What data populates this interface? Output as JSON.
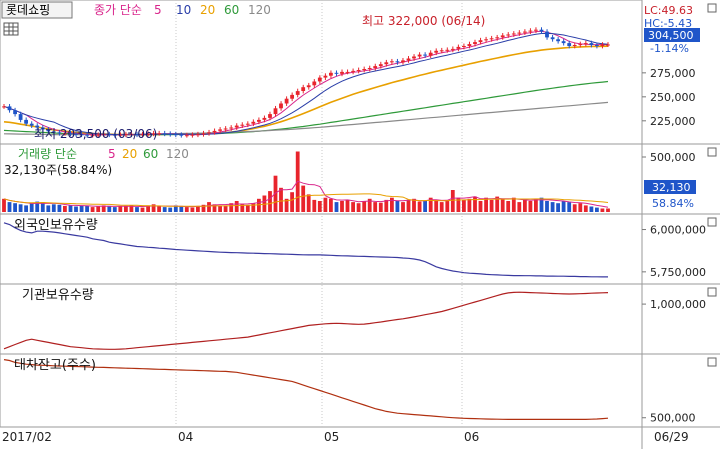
{
  "header": {
    "stock_name": "롯데쇼핑",
    "ma_label": "종가 단순",
    "periods": [
      "5",
      "10",
      "20",
      "60",
      "120"
    ],
    "lc": "LC:49.63",
    "hc": "HC:-5.43",
    "last_price": "304,500",
    "change_pct": "-1.14%",
    "high_note": "최고 322,000 (06/14)",
    "low_note": "최저 203,500 (03/06)"
  },
  "volume_header": {
    "title": "거래량 단순",
    "periods": [
      "5",
      "20",
      "60",
      "120"
    ],
    "current": "32,130주(58.84%)",
    "badge_value": "32,130",
    "badge_pct": "58.84%"
  },
  "panels": {
    "foreign": "외국인보유수량",
    "inst": "기관보유수량",
    "loan": "대차잔고(주수)"
  },
  "colors": {
    "up": "#e8242c",
    "down": "#1f55c9",
    "ma5": "#d9268c",
    "ma10": "#2a3ea8",
    "ma20": "#e8a000",
    "ma60": "#2f9a3a",
    "ma120": "#8a8a8a",
    "foreign_line": "#3a3aa0",
    "inst_line": "#b02020",
    "loan_line": "#b03010",
    "badge": "#1f55c9"
  },
  "chart_data": [
    {
      "type": "candlestick",
      "title": "",
      "x_ticks": [
        "2017/02",
        "04",
        "05",
        "06",
        "06/29"
      ],
      "y_ticks": [
        225000,
        250000,
        275000
      ],
      "ylim": [
        205000,
        328000
      ],
      "close": [
        240000,
        236000,
        232000,
        226000,
        222000,
        220000,
        218000,
        216000,
        214000,
        213000,
        212000,
        212000,
        211500,
        211000,
        210500,
        210000,
        210000,
        210500,
        211000,
        210500,
        210000,
        210500,
        211000,
        211000,
        210500,
        211000,
        211500,
        212000,
        212000,
        211500,
        211000,
        210500,
        210000,
        210000,
        210500,
        211000,
        212000,
        213000,
        214500,
        216000,
        217000,
        218000,
        220000,
        221000,
        222000,
        224000,
        226000,
        228000,
        232000,
        238000,
        243000,
        248000,
        252000,
        256000,
        260000,
        262000,
        266000,
        270000,
        272000,
        275000,
        274000,
        276000,
        276000,
        277000,
        278000,
        279000,
        280000,
        282000,
        284000,
        286000,
        287000,
        286000,
        288000,
        290000,
        292000,
        294000,
        293000,
        296000,
        298000,
        298500,
        299000,
        300000,
        302000,
        303000,
        305000,
        307000,
        309000,
        310000,
        311000,
        312000,
        314000,
        315000,
        316000,
        317000,
        318000,
        319000,
        320000,
        318000,
        312000,
        310000,
        308000,
        306000,
        303000,
        304000,
        305000,
        306000,
        304000,
        303000,
        304500,
        304500
      ],
      "ma_series": [
        {
          "name": "20",
          "values": [
            224000,
            223500,
            222500,
            221500,
            220500,
            219500,
            218500,
            217500,
            216500,
            215500,
            214800,
            214200,
            213500,
            213000,
            212500,
            212000,
            211700,
            211400,
            211200,
            211000,
            210800,
            210700,
            210600,
            210500,
            210500,
            210500,
            210600,
            210700,
            210800,
            210900,
            211000,
            211000,
            211000,
            211000,
            211000,
            211100,
            211300,
            211500,
            211800,
            212200,
            212700,
            213300,
            214000,
            214800,
            215800,
            216900,
            218100,
            219300,
            220700,
            222300,
            224100,
            226000,
            228000,
            230200,
            232500,
            234800,
            237200,
            239600,
            242000,
            244300,
            246500,
            248600,
            250600,
            252600,
            254500,
            256300,
            258000,
            259700,
            261400,
            263100,
            264800,
            266300,
            267800,
            269300,
            270800,
            272300,
            273700,
            275100,
            276500,
            277800,
            279100,
            280400,
            281700,
            283000,
            284300,
            285600,
            286900,
            288100,
            289300,
            290500,
            291700,
            292900,
            294000,
            295100,
            296100,
            297000,
            297900,
            298700,
            299400,
            300000,
            300500,
            301000,
            301400,
            301700,
            302000,
            302300,
            302500,
            302600,
            302700,
            302800
          ]
        },
        {
          "name": "60",
          "values": [
            215000,
            214700,
            214400,
            214100,
            213800,
            213500,
            213200,
            212900,
            212600,
            212300,
            212000,
            211800,
            211600,
            211400,
            211200,
            211000,
            210900,
            210800,
            210700,
            210600,
            210500,
            210500,
            210500,
            210500,
            210500,
            210500,
            210500,
            210500,
            210500,
            210500,
            210600,
            210700,
            210800,
            210900,
            211000,
            211100,
            211200,
            211400,
            211600,
            211800,
            212100,
            212400,
            212700,
            213000,
            213400,
            213800,
            214200,
            214700,
            215200,
            215800,
            216400,
            217000,
            217700,
            218400,
            219100,
            219900,
            220700,
            221500,
            222400,
            223300,
            224200,
            225100,
            226000,
            226900,
            227800,
            228700,
            229600,
            230500,
            231400,
            232300,
            233200,
            234100,
            235000,
            235900,
            236800,
            237700,
            238600,
            239500,
            240400,
            241300,
            242200,
            243100,
            244000,
            244900,
            245800,
            246700,
            247600,
            248500,
            249400,
            250300,
            251200,
            252100,
            253000,
            253900,
            254800,
            255700,
            256600,
            257400,
            258200,
            259000,
            259800,
            260600,
            261400,
            262100,
            262800,
            263500,
            264200,
            264800,
            265400,
            266000
          ]
        },
        {
          "name": "120",
          "values": [
            211500,
            211400,
            211300,
            211200,
            211100,
            211000,
            210900,
            210800,
            210700,
            210600,
            210500,
            210500,
            210500,
            210500,
            210500,
            210500,
            210500,
            210500,
            210500,
            210500,
            210600,
            210700,
            210800,
            210900,
            211000,
            211100,
            211200,
            211300,
            211400,
            211500,
            211600,
            211700,
            211800,
            211900,
            212000,
            212100,
            212200,
            212400,
            212600,
            212800,
            213000,
            213200,
            213400,
            213600,
            213800,
            214000,
            214300,
            214600,
            214900,
            215200,
            215500,
            215800,
            216200,
            216600,
            217000,
            217400,
            217800,
            218200,
            218700,
            219200,
            219700,
            220200,
            220700,
            221200,
            221700,
            222200,
            222700,
            223200,
            223700,
            224200,
            224700,
            225200,
            225700,
            226200,
            226700,
            227200,
            227700,
            228200,
            228700,
            229200,
            229700,
            230200,
            230700,
            231200,
            231700,
            232200,
            232700,
            233200,
            233700,
            234200,
            234700,
            235200,
            235700,
            236200,
            236700,
            237200,
            237700,
            238200,
            238700,
            239200,
            239700,
            240200,
            240700,
            241200,
            241700,
            242200,
            242700,
            243200,
            243700,
            244200
          ]
        }
      ]
    },
    {
      "type": "bar",
      "title": "",
      "y_ticks": [
        500000
      ],
      "ylim": [
        0,
        600000
      ],
      "values": [
        120000,
        90000,
        80000,
        70000,
        60000,
        85000,
        95000,
        90000,
        60000,
        70000,
        65000,
        55000,
        60000,
        50000,
        60000,
        55000,
        45000,
        50000,
        60000,
        55000,
        45000,
        50000,
        55000,
        60000,
        45000,
        40000,
        60000,
        70000,
        55000,
        45000,
        40000,
        60000,
        55000,
        45000,
        40000,
        55000,
        65000,
        90000,
        70000,
        55000,
        60000,
        80000,
        100000,
        70000,
        60000,
        80000,
        120000,
        150000,
        190000,
        330000,
        220000,
        120000,
        180000,
        550000,
        240000,
        160000,
        110000,
        100000,
        130000,
        120000,
        90000,
        100000,
        110000,
        90000,
        80000,
        100000,
        120000,
        90000,
        85000,
        110000,
        130000,
        100000,
        90000,
        110000,
        120000,
        95000,
        100000,
        130000,
        110000,
        90000,
        100000,
        200000,
        130000,
        110000,
        120000,
        140000,
        100000,
        130000,
        110000,
        140000,
        120000,
        100000,
        130000,
        90000,
        110000,
        100000,
        120000,
        130000,
        100000,
        90000,
        80000,
        100000,
        90000,
        70000,
        80000,
        60000,
        50000,
        40000,
        32130,
        32130
      ]
    },
    {
      "type": "line",
      "title": "",
      "y_ticks": [
        5750000,
        6000000
      ],
      "ylim": [
        5690000,
        6080000
      ],
      "values": [
        6040000,
        6030000,
        6010000,
        5995000,
        5985000,
        5980000,
        5990000,
        5990000,
        5988000,
        5985000,
        5980000,
        5975000,
        5970000,
        5965000,
        5960000,
        5955000,
        5945000,
        5940000,
        5935000,
        5925000,
        5920000,
        5915000,
        5910000,
        5905000,
        5900000,
        5898000,
        5895000,
        5893000,
        5890000,
        5888000,
        5885000,
        5882000,
        5880000,
        5878000,
        5876000,
        5874000,
        5872000,
        5870000,
        5868000,
        5866000,
        5865000,
        5864000,
        5863000,
        5862000,
        5861000,
        5860000,
        5859000,
        5858000,
        5857000,
        5856000,
        5855000,
        5854000,
        5853000,
        5852000,
        5851000,
        5850000,
        5850000,
        5850000,
        5849000,
        5848000,
        5846000,
        5845000,
        5844000,
        5843000,
        5842000,
        5841000,
        5840000,
        5839000,
        5838000,
        5837000,
        5836000,
        5835000,
        5832000,
        5830000,
        5826000,
        5820000,
        5810000,
        5795000,
        5780000,
        5770000,
        5762000,
        5755000,
        5750000,
        5745000,
        5742000,
        5740000,
        5738000,
        5735000,
        5733000,
        5732000,
        5730000,
        5729000,
        5728000,
        5728000,
        5727000,
        5727000,
        5726000,
        5726000,
        5725000,
        5725000,
        5724000,
        5724000,
        5723000,
        5723000,
        5722000,
        5722000,
        5721000,
        5721000,
        5720000,
        5720000
      ]
    },
    {
      "type": "line",
      "title": "",
      "y_ticks": [
        1000000
      ],
      "ylim": [
        550000,
        1170000
      ],
      "values": [
        580000,
        600000,
        620000,
        640000,
        660000,
        670000,
        660000,
        650000,
        640000,
        630000,
        620000,
        610000,
        600000,
        595000,
        590000,
        585000,
        580000,
        578000,
        576000,
        575000,
        575000,
        577000,
        580000,
        585000,
        590000,
        595000,
        600000,
        605000,
        610000,
        615000,
        620000,
        625000,
        630000,
        635000,
        640000,
        645000,
        650000,
        655000,
        660000,
        665000,
        670000,
        675000,
        680000,
        685000,
        690000,
        700000,
        710000,
        720000,
        730000,
        740000,
        750000,
        760000,
        770000,
        780000,
        790000,
        800000,
        805000,
        810000,
        815000,
        818000,
        820000,
        818000,
        815000,
        812000,
        810000,
        812000,
        818000,
        825000,
        832000,
        840000,
        848000,
        855000,
        862000,
        870000,
        880000,
        890000,
        900000,
        910000,
        920000,
        930000,
        945000,
        960000,
        975000,
        990000,
        1005000,
        1020000,
        1035000,
        1050000,
        1065000,
        1080000,
        1095000,
        1105000,
        1110000,
        1112000,
        1110000,
        1108000,
        1106000,
        1104000,
        1102000,
        1100000,
        1098000,
        1096000,
        1095000,
        1096000,
        1098000,
        1100000,
        1102000,
        1104000,
        1106000,
        1108000
      ]
    },
    {
      "type": "line",
      "title": "",
      "y_ticks": [
        500000
      ],
      "ylim": [
        420000,
        1180000
      ],
      "values": [
        1140000,
        1130000,
        1110000,
        1100000,
        1090000,
        1085000,
        1080000,
        1078000,
        1075000,
        1072000,
        1070000,
        1068000,
        1066000,
        1064000,
        1062000,
        1060000,
        1058000,
        1056000,
        1054000,
        1052000,
        1050000,
        1048000,
        1046000,
        1044000,
        1042000,
        1040000,
        1038000,
        1036000,
        1034000,
        1032000,
        1030000,
        1028000,
        1026000,
        1024000,
        1022000,
        1020000,
        1018000,
        1016000,
        1014000,
        1012000,
        1010000,
        1005000,
        1000000,
        990000,
        980000,
        970000,
        960000,
        950000,
        940000,
        930000,
        920000,
        910000,
        900000,
        880000,
        860000,
        840000,
        820000,
        800000,
        780000,
        760000,
        740000,
        720000,
        700000,
        680000,
        660000,
        640000,
        620000,
        600000,
        585000,
        570000,
        560000,
        550000,
        545000,
        540000,
        535000,
        530000,
        525000,
        520000,
        515000,
        510000,
        505000,
        500000,
        497000,
        494000,
        492000,
        490000,
        488000,
        486000,
        485000,
        484000,
        483000,
        482000,
        482000,
        482000,
        482000,
        482000,
        482000,
        482000,
        482000,
        482000,
        482000,
        482000,
        482000,
        482000,
        482000,
        482000,
        484000,
        486000,
        490000,
        495000
      ]
    }
  ]
}
